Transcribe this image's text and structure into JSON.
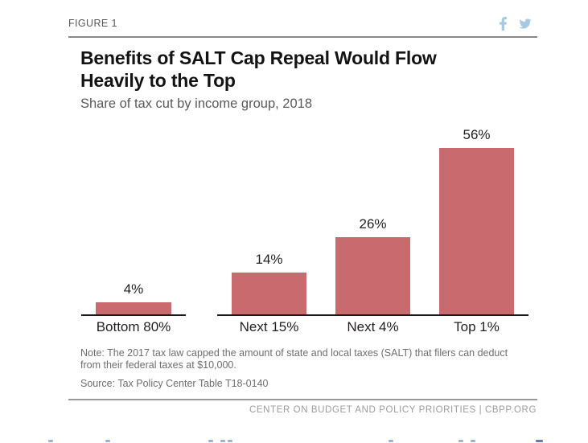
{
  "figure_label": "FIGURE 1",
  "title": "Benefits of SALT Cap Repeal Would Flow Heavily to the Top",
  "subtitle": "Share of tax cut by income group, 2018",
  "note": "Note: The 2017 tax law capped the amount of state and local taxes (SALT) that filers can deduct from their federal taxes at $10,000.",
  "source": "Source: Tax Policy Center Table T18-0140",
  "footer_credit": "CENTER ON BUDGET AND POLICY PRIORITIES | CBPP.ORG",
  "icons": {
    "facebook": "facebook-f-icon",
    "twitter": "twitter-bird-icon"
  },
  "colors": {
    "bar": "#c96a6e",
    "social_blue": "#a7c9e2",
    "title_text": "#131313",
    "subtitle_gray": "#58595b",
    "note_gray": "#6d6e71",
    "footer_gray": "#9b9b9d",
    "axis_black": "#1a1a1a",
    "rule_gray": "#85878a"
  },
  "chart_data": {
    "type": "bar",
    "categories": [
      "Bottom 80%",
      "Next 15%",
      "Next 4%",
      "Top 1%"
    ],
    "values": [
      4,
      14,
      26,
      56
    ],
    "value_labels": [
      "4%",
      "14%",
      "26%",
      "56%"
    ],
    "title": "Benefits of SALT Cap Repeal Would Flow Heavily to the Top",
    "subtitle": "Share of tax cut by income group, 2018",
    "xlabel": "",
    "ylabel": "",
    "ylim": [
      0,
      60
    ],
    "grid": false,
    "legend": false,
    "bar_color": "#c96a6e",
    "axis_groups": [
      [
        "Bottom 80%"
      ],
      [
        "Next 15%",
        "Next 4%",
        "Top 1%"
      ]
    ]
  }
}
